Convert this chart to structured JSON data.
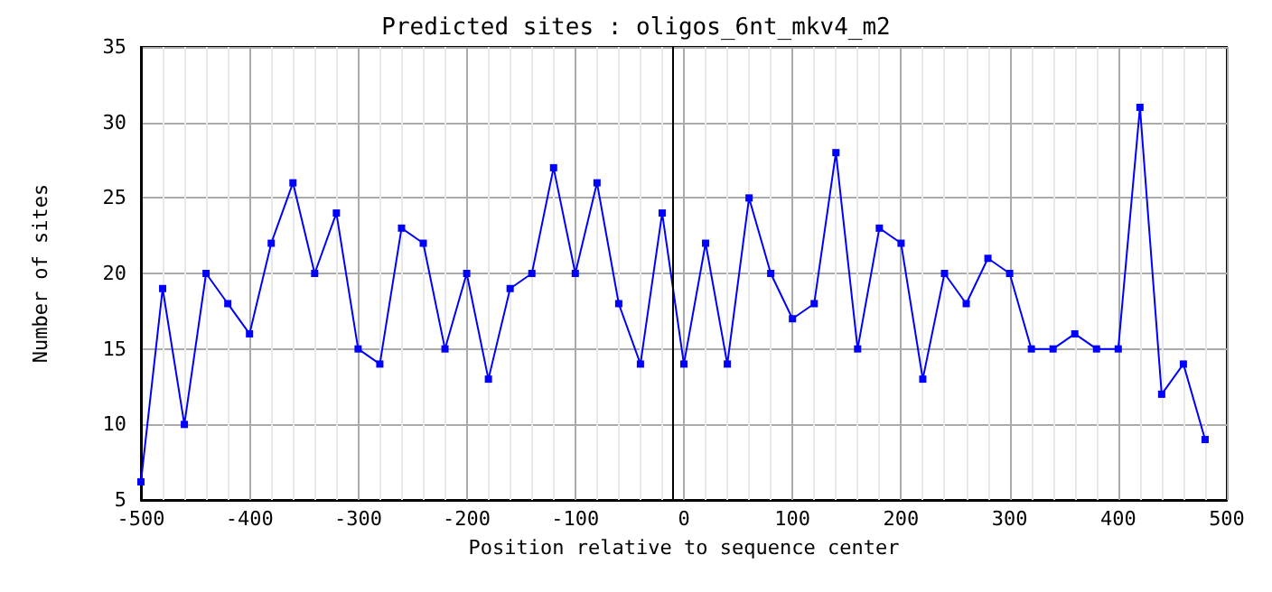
{
  "chart_data": {
    "type": "line",
    "title": "Predicted sites : oligos_6nt_mkv4_m2",
    "xlabel": "Position relative to sequence center",
    "ylabel": "Number of sites",
    "x": [
      -500,
      -480,
      -460,
      -440,
      -420,
      -400,
      -380,
      -360,
      -340,
      -320,
      -300,
      -280,
      -260,
      -240,
      -220,
      -200,
      -180,
      -160,
      -140,
      -120,
      -100,
      -80,
      -60,
      -40,
      -20,
      0,
      20,
      40,
      60,
      80,
      100,
      120,
      140,
      160,
      180,
      200,
      220,
      240,
      260,
      280,
      300,
      320,
      340,
      360,
      380,
      400,
      420,
      440,
      460,
      480
    ],
    "series": [
      {
        "color": "#0000ff",
        "values": [
          6.2,
          19,
          10,
          20,
          18,
          16,
          22,
          26,
          20,
          24,
          15,
          14,
          23,
          22,
          15,
          20,
          13,
          19,
          20,
          27,
          20,
          26,
          18,
          14,
          24,
          14,
          22,
          14,
          25,
          20,
          17,
          18,
          28,
          15,
          23,
          22,
          13,
          20,
          18,
          21,
          20,
          15,
          15,
          16,
          15,
          15,
          31,
          12,
          14,
          9
        ]
      }
    ],
    "xlim": [
      -500,
      500
    ],
    "xticks": [
      -500,
      -400,
      -300,
      -200,
      -100,
      0,
      100,
      200,
      300,
      400,
      500
    ],
    "ylim": [
      5,
      35
    ],
    "yticks": [
      5,
      10,
      15,
      20,
      25,
      30,
      35
    ],
    "ref_lines": [
      {
        "axis": "x",
        "value": -10,
        "color": "#000000"
      }
    ],
    "grid": true,
    "marker": "square",
    "line_style": "solid"
  }
}
